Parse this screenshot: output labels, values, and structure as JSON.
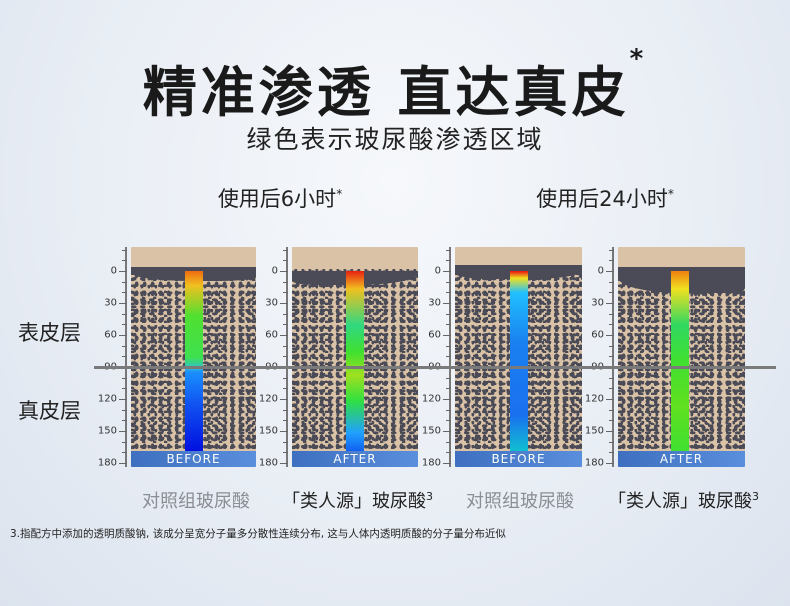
{
  "title": "精准渗透 直达真皮",
  "title_mark": "*",
  "subtitle": "绿色表示玻尿酸渗透区域",
  "groups": [
    {
      "label": "使用后6小时",
      "mark": "*"
    },
    {
      "label": "使用后24小时",
      "mark": "*"
    }
  ],
  "layers": {
    "epidermis": "表皮层",
    "dermis": "真皮层"
  },
  "axis_ticks": [
    "0",
    "30",
    "60",
    "90",
    "120",
    "150",
    "180"
  ],
  "panels": [
    {
      "label": "BEFORE",
      "penetration_gradient": "orange-green to 90, blue below"
    },
    {
      "label": "AFTER",
      "penetration_gradient": "red-green through 180"
    },
    {
      "label": "BEFORE",
      "penetration_gradient": "red to blue from top"
    },
    {
      "label": "AFTER",
      "penetration_gradient": "orange-green through 180"
    }
  ],
  "captions": [
    {
      "text": "对照组玻尿酸",
      "sup": ""
    },
    {
      "text": "「类人源」玻尿酸",
      "sup": "3"
    },
    {
      "text": "对照组玻尿酸",
      "sup": ""
    },
    {
      "text": "「类人源」玻尿酸",
      "sup": "3"
    }
  ],
  "footnote": "3.指配方中添加的透明质酸钠, 该成分呈宽分子量多分散性连续分布, 这与人体内透明质酸的分子量分布近似",
  "colors": {
    "tissue": "#d9c2a6",
    "fibers": "#4a4b57",
    "label_bar": "#4a7fd0"
  }
}
